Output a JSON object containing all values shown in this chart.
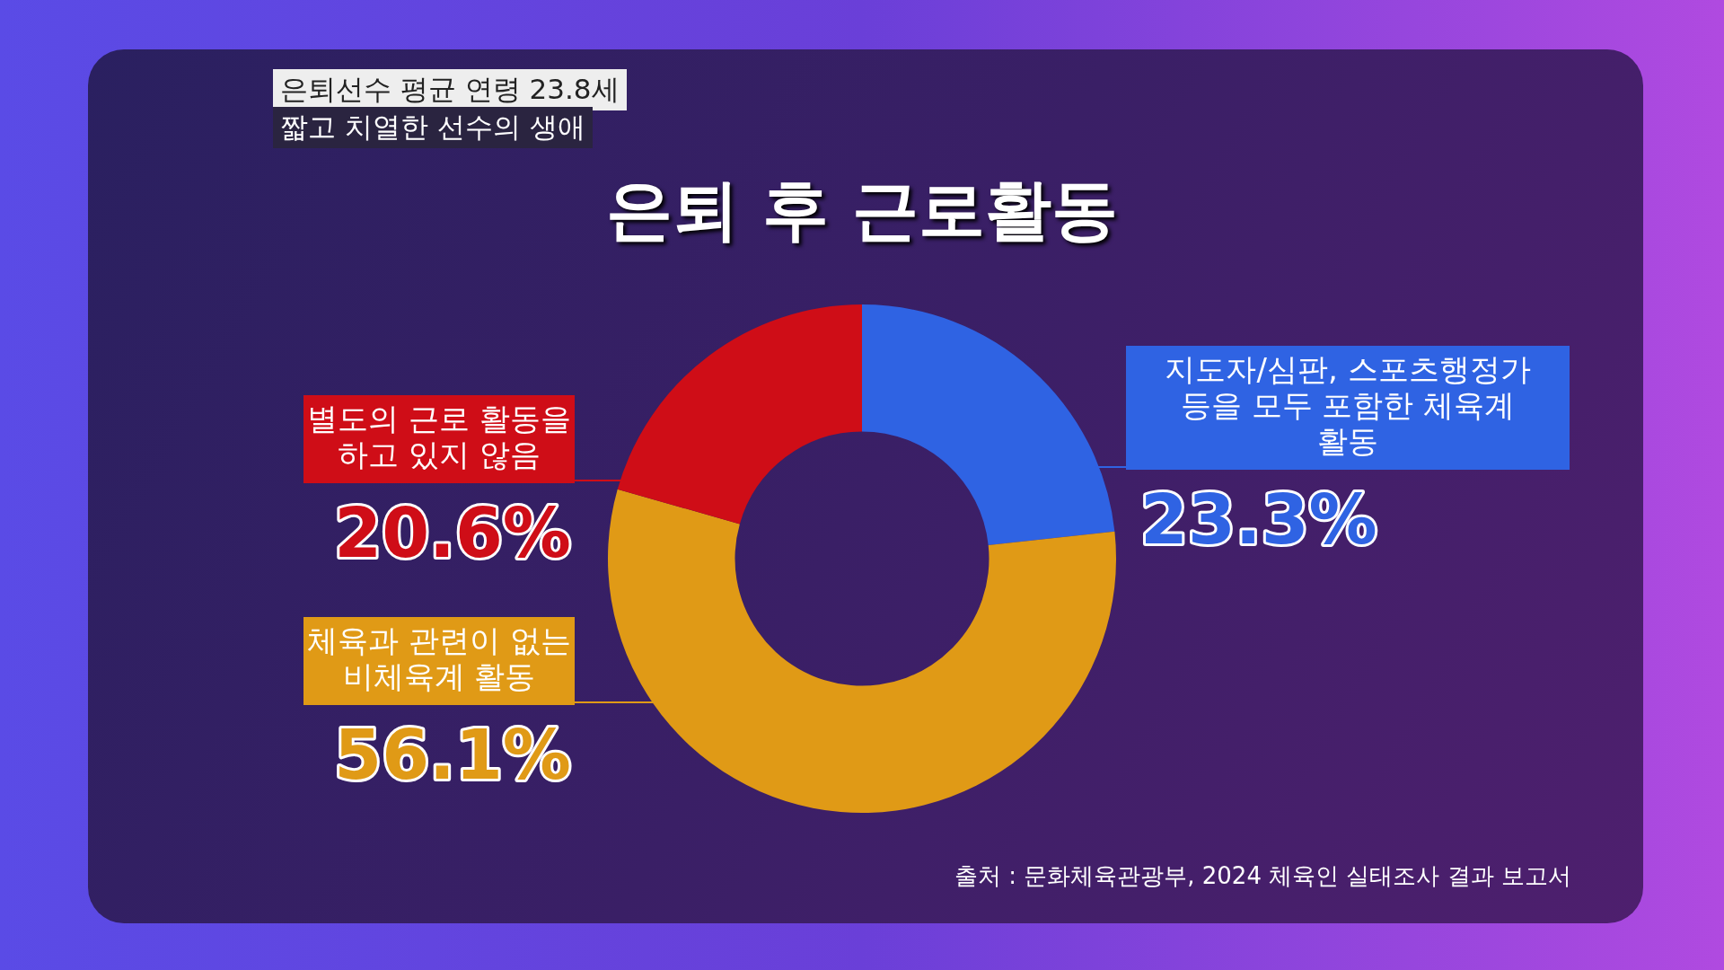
{
  "chart_data": {
    "type": "donut",
    "title": "은퇴 후 근로활동",
    "subtitle": "은퇴선수 평균 연령 23.8세",
    "categories": [
      "지도자/심판, 스포츠행정가 등을 모두 포함한 체육계 활동",
      "체육과 관련이 없는 비체육계 활동",
      "별도의 근로 활동을 하고 있지 않음"
    ],
    "values": [
      23.3,
      56.1,
      20.6
    ],
    "value_labels": [
      "23.3%",
      "56.1%",
      "20.6%"
    ],
    "colors": [
      "#2f63e3",
      "#e09a16",
      "#cf0d17"
    ],
    "legend": false,
    "annotations": [
      "짧고 치열한 선수의 생애",
      "출처 : 문화체육관광부, 2024 체육인 실태조사 결과 보고서"
    ]
  }
}
